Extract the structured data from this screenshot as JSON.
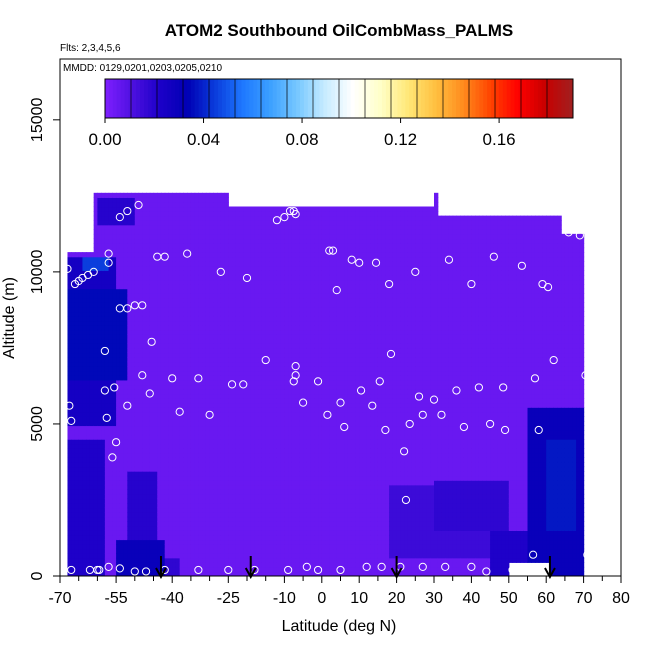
{
  "chart_data": {
    "type": "heatmap",
    "title": "ATOM2 Southbound OilCombMass_PALMS",
    "subtitle_flights": "Flts: 2,3,4,5,6",
    "subtitle_dates": "MMDD: 0129,0201,0203,0205,0210",
    "xlabel": "Latitude (deg N)",
    "ylabel": "Altitude (m)",
    "xlim": [
      -70,
      80
    ],
    "ylim": [
      0,
      17000
    ],
    "x_ticks": [
      -70,
      -55,
      -40,
      -25,
      -10,
      0,
      10,
      20,
      30,
      40,
      50,
      60,
      70,
      80
    ],
    "x_tick_labels": [
      "-70",
      "-55",
      "-40",
      "-25",
      "-10",
      "0",
      "10",
      "20",
      "30",
      "40",
      "50",
      "60",
      "70",
      "80"
    ],
    "x_minor_ticks": [
      -65,
      -60,
      -50,
      -45,
      -35,
      -30,
      -20,
      -15,
      -5,
      5,
      15,
      25,
      35,
      45,
      55,
      65,
      75
    ],
    "y_ticks": [
      0,
      5000,
      10000,
      15000
    ],
    "y_tick_labels": [
      "0",
      "5000",
      "10000",
      "15000"
    ],
    "colorbar": {
      "min": 0.0,
      "max": 0.19,
      "tick_values": [
        0.0,
        0.04,
        0.08,
        0.12,
        0.16
      ],
      "tick_labels": [
        "0.00",
        "0.04",
        "0.08",
        "0.12",
        "0.16"
      ],
      "colors": [
        "#7f1fff",
        "#4d10e0",
        "#1c00c8",
        "#0000b4",
        "#0a3cdc",
        "#1e78ff",
        "#3ca0ff",
        "#78c8ff",
        "#c8ecff",
        "#ffffff",
        "#ffffc8",
        "#ffe878",
        "#ffc040",
        "#ff8c1e",
        "#ff4400",
        "#ff0000",
        "#c80000",
        "#a02020"
      ]
    },
    "background_value": 0.005,
    "elevated_regions": [
      {
        "x": [
          -68,
          -55
        ],
        "y": [
          5000,
          10500
        ],
        "value": 0.025
      },
      {
        "x": [
          -68,
          -52
        ],
        "y": [
          6500,
          9500
        ],
        "value": 0.035
      },
      {
        "x": [
          -64,
          -57
        ],
        "y": [
          10000,
          10500
        ],
        "value": 0.045
      },
      {
        "x": [
          -60,
          -50
        ],
        "y": [
          11500,
          12500
        ],
        "value": 0.02
      },
      {
        "x": [
          -68,
          -58
        ],
        "y": [
          0,
          4500
        ],
        "value": 0.022
      },
      {
        "x": [
          -55,
          -42
        ],
        "y": [
          0,
          1200
        ],
        "value": 0.03
      },
      {
        "x": [
          -52,
          -44
        ],
        "y": [
          1200,
          3500
        ],
        "value": 0.02
      },
      {
        "x": [
          -46,
          -38
        ],
        "y": [
          0,
          600
        ],
        "value": 0.018
      },
      {
        "x": [
          18,
          45
        ],
        "y": [
          600,
          3000
        ],
        "value": 0.015
      },
      {
        "x": [
          30,
          50
        ],
        "y": [
          1500,
          3200
        ],
        "value": 0.018
      },
      {
        "x": [
          55,
          70
        ],
        "y": [
          0,
          5500
        ],
        "value": 0.03
      },
      {
        "x": [
          60,
          68
        ],
        "y": [
          1500,
          4500
        ],
        "value": 0.038
      },
      {
        "x": [
          45,
          56
        ],
        "y": [
          0,
          1500
        ],
        "value": 0.022
      }
    ],
    "coverage_gaps": [
      {
        "x": [
          -70,
          -61
        ],
        "y": [
          10600,
          12600
        ]
      },
      {
        "x": [
          -70,
          -68
        ],
        "y": [
          0,
          10600
        ]
      },
      {
        "x": [
          -25,
          30
        ],
        "y": [
          12100,
          12600
        ]
      },
      {
        "x": [
          50,
          61
        ],
        "y": [
          0,
          500
        ]
      },
      {
        "x": [
          31,
          72
        ],
        "y": [
          11800,
          12600
        ]
      },
      {
        "x": [
          64,
          72
        ],
        "y": [
          11200,
          11800
        ]
      },
      {
        "x": [
          70,
          72
        ],
        "y": [
          0,
          11200
        ]
      }
    ],
    "observation_points": [
      [
        -67,
        200
      ],
      [
        -67,
        5100
      ],
      [
        -67.5,
        5600
      ],
      [
        -68,
        10100
      ],
      [
        -66,
        9600
      ],
      [
        -65,
        9700
      ],
      [
        -64,
        9800
      ],
      [
        -62.5,
        9900
      ],
      [
        -61,
        10000
      ],
      [
        -57,
        10600
      ],
      [
        -57,
        10300
      ],
      [
        -54,
        11800
      ],
      [
        -52,
        12000
      ],
      [
        -49,
        12200
      ],
      [
        -54,
        8800
      ],
      [
        -52,
        8800
      ],
      [
        -50,
        8900
      ],
      [
        -48,
        8900
      ],
      [
        -58,
        7400
      ],
      [
        -56,
        3900
      ],
      [
        -55,
        4400
      ],
      [
        -58,
        6100
      ],
      [
        -57.5,
        5200
      ],
      [
        -55.5,
        6200
      ],
      [
        -52,
        5600
      ],
      [
        -48,
        6600
      ],
      [
        -46,
        6000
      ],
      [
        -45.5,
        7700
      ],
      [
        -44,
        10500
      ],
      [
        -42,
        10500
      ],
      [
        -36,
        10600
      ],
      [
        -27,
        10000
      ],
      [
        -20,
        9800
      ],
      [
        -40,
        6500
      ],
      [
        -38,
        5400
      ],
      [
        -33,
        6500
      ],
      [
        -30,
        5300
      ],
      [
        -24,
        6300
      ],
      [
        -21,
        6300
      ],
      [
        -15,
        7100
      ],
      [
        -12,
        11700
      ],
      [
        -10,
        11800
      ],
      [
        -8.5,
        12000
      ],
      [
        -7.5,
        12000
      ],
      [
        -7,
        11900
      ],
      [
        -7,
        6600
      ],
      [
        -7,
        6900
      ],
      [
        -7.5,
        6400
      ],
      [
        -5,
        5700
      ],
      [
        -1,
        6400
      ],
      [
        1.5,
        5300
      ],
      [
        2,
        10700
      ],
      [
        3,
        10700
      ],
      [
        4,
        9400
      ],
      [
        5,
        5700
      ],
      [
        6,
        4900
      ],
      [
        8,
        10400
      ],
      [
        10,
        10300
      ],
      [
        10.5,
        6100
      ],
      [
        13.5,
        5600
      ],
      [
        14.5,
        10300
      ],
      [
        15.5,
        6400
      ],
      [
        17,
        4800
      ],
      [
        18,
        9600
      ],
      [
        18.5,
        7300
      ],
      [
        22,
        4100
      ],
      [
        22.5,
        2500
      ],
      [
        23.5,
        5000
      ],
      [
        25,
        10000
      ],
      [
        26,
        5900
      ],
      [
        27,
        5300
      ],
      [
        30,
        5800
      ],
      [
        32,
        5300
      ],
      [
        34,
        10400
      ],
      [
        36,
        6100
      ],
      [
        38,
        4900
      ],
      [
        40,
        9600
      ],
      [
        42,
        6200
      ],
      [
        45,
        5000
      ],
      [
        46,
        10500
      ],
      [
        48.5,
        6200
      ],
      [
        49,
        4800
      ],
      [
        53.5,
        10200
      ],
      [
        57,
        6500
      ],
      [
        58,
        4800
      ],
      [
        59,
        9600
      ],
      [
        60.5,
        9500
      ],
      [
        62,
        7100
      ],
      [
        66,
        11300
      ],
      [
        69,
        11200
      ],
      [
        70.5,
        6600
      ],
      [
        71,
        700
      ],
      [
        56.5,
        700
      ],
      [
        -62,
        200
      ],
      [
        -60,
        200
      ],
      [
        -57,
        300
      ],
      [
        -54,
        250
      ],
      [
        -50,
        150
      ],
      [
        -47,
        150
      ],
      [
        -42,
        200
      ],
      [
        -33,
        200
      ],
      [
        -25,
        200
      ],
      [
        -18,
        200
      ],
      [
        -9,
        200
      ],
      [
        -4,
        300
      ],
      [
        -1,
        200
      ],
      [
        5,
        200
      ],
      [
        12,
        300
      ],
      [
        16,
        300
      ],
      [
        21,
        300
      ],
      [
        27,
        300
      ],
      [
        33,
        300
      ],
      [
        40,
        300
      ],
      [
        44,
        150
      ],
      [
        51,
        200
      ],
      [
        -59.5,
        200
      ]
    ],
    "flight_markers_x": [
      -43,
      -19,
      20,
      61
    ]
  }
}
